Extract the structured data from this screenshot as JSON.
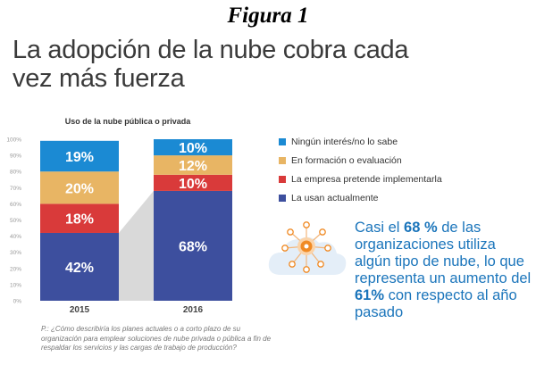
{
  "figure_label": "Figura 1",
  "headline": "La adopción de la nube cobra cada vez más fuerza",
  "chart_data": {
    "type": "bar",
    "stacked": true,
    "title": "Uso de la nube pública o privada",
    "categories": [
      "2015",
      "2016"
    ],
    "series": [
      {
        "name": "La usan actualmente",
        "values": [
          42,
          68
        ],
        "labels": [
          "42%",
          "68%"
        ],
        "color": "#3d4f9e"
      },
      {
        "name": "La empresa pretende implementarla",
        "values": [
          18,
          10
        ],
        "labels": [
          "18%",
          "10%"
        ],
        "color": "#d93a3a"
      },
      {
        "name": "En formación o evaluación",
        "values": [
          20,
          12
        ],
        "labels": [
          "20%",
          "12%"
        ],
        "color": "#e8b564"
      },
      {
        "name": "Ningún interés/no lo sabe",
        "values": [
          19,
          10
        ],
        "labels": [
          "19%",
          "10%"
        ],
        "color": "#1b8ad3"
      }
    ],
    "yticks": [
      "0%",
      "10%",
      "20%",
      "30%",
      "40%",
      "50%",
      "60%",
      "70%",
      "80%",
      "90%",
      "100%"
    ],
    "ylim": [
      0,
      100
    ],
    "connector_color": "#d9d9d9",
    "legend_position": "right"
  },
  "legend_order": [
    {
      "label": "Ningún interés/no lo sabe",
      "color": "#1b8ad3"
    },
    {
      "label": "En formación o evaluación",
      "color": "#e8b564"
    },
    {
      "label": "La empresa pretende implementarla",
      "color": "#d93a3a"
    },
    {
      "label": "La usan actualmente",
      "color": "#3d4f9e"
    }
  ],
  "question": "P.: ¿Cómo describiría los planes actuales o a corto plazo de su organización para emplear soluciones de nube privada o pública a fin de respaldar los servicios y las cargas de trabajo de producción?",
  "callout": {
    "part1": "Casi el ",
    "highlight1": "68 %",
    "part2": " de las organizaciones utiliza algún tipo de nube, lo que representa un aumento del ",
    "highlight2": "61%",
    "part3": " con respecto al año pasado"
  },
  "cloud_icon": "cloud-network-icon",
  "colors": {
    "accent": "#1b75bb",
    "node": "#f08a24",
    "cloud": "#e4eef8"
  }
}
